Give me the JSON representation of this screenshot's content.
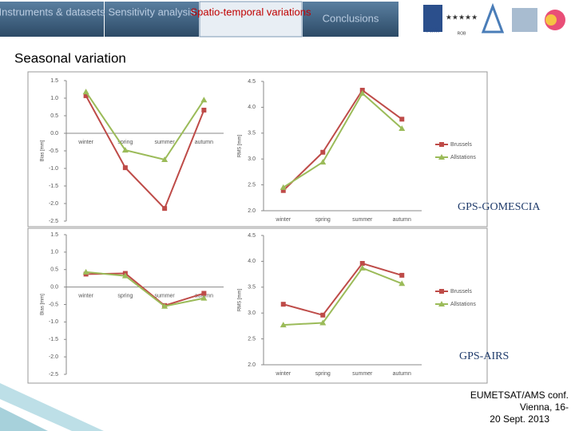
{
  "nav": [
    "Instruments & datasets",
    "Sensitivity analysis",
    "Spatio-temporal variations",
    "Conclusions"
  ],
  "logos": [
    "RMI",
    "ROB"
  ],
  "heading": "Seasonal variation",
  "panel_labels": [
    "GPS-GOMESCIA",
    "GPS-AIRS"
  ],
  "footer": [
    "EUMETSAT/AMS conf.",
    "Vienna, 16-",
    "20 Sept. 2013"
  ],
  "chart_data": [
    {
      "type": "line",
      "ylabel": "Bias [mm]",
      "categories": [
        "winter",
        "spring",
        "summer",
        "autumn"
      ],
      "series": [
        {
          "color": "#be4b48",
          "marker": "square",
          "values": [
            1.07,
            -0.98,
            -2.14,
            0.66
          ]
        },
        {
          "color": "#9bbb59",
          "marker": "triangle",
          "values": [
            1.18,
            -0.48,
            -0.75,
            0.95
          ]
        }
      ],
      "ylim": [
        -2.5,
        1.5
      ],
      "yticks": [
        1.5,
        {
          "value": 1,
          "label": "1.0"
        },
        0.5,
        {
          "value": 0,
          "label": "0.0"
        },
        -0.5,
        {
          "value": -1,
          "label": "-1.0"
        },
        -1.5,
        {
          "value": -2,
          "label": "-2.0"
        },
        -2.5
      ]
    },
    {
      "type": "line",
      "ylabel": "RMS [mm]",
      "categories": [
        "winter",
        "spring",
        "summer",
        "autumn"
      ],
      "legend": "right",
      "series": [
        {
          "name": "Brussels",
          "color": "#be4b48",
          "marker": "square",
          "values": [
            2.39,
            3.13,
            4.33,
            3.77
          ]
        },
        {
          "name": "Allstations",
          "color": "#9bbb59",
          "marker": "triangle",
          "values": [
            2.45,
            2.94,
            4.27,
            3.59
          ]
        }
      ],
      "ylim": [
        2,
        4.5
      ],
      "yticks": [
        4.5,
        {
          "value": 4,
          "label": "4.0"
        },
        3.5,
        {
          "value": 3,
          "label": "3.0"
        },
        2.5,
        {
          "value": 2,
          "label": "2.0"
        }
      ]
    },
    {
      "type": "line",
      "ylabel": "Bias [mm]",
      "categories": [
        "winter",
        "spring",
        "summer",
        "autumn"
      ],
      "series": [
        {
          "color": "#be4b48",
          "marker": "square",
          "values": [
            0.37,
            0.39,
            -0.53,
            -0.18
          ]
        },
        {
          "color": "#9bbb59",
          "marker": "triangle",
          "values": [
            0.43,
            0.32,
            -0.55,
            -0.32
          ]
        }
      ],
      "ylim": [
        -2.5,
        1.5
      ],
      "yticks": [
        1.5,
        {
          "value": 1,
          "label": "1.0"
        },
        0.5,
        {
          "value": 0,
          "label": "0.0"
        },
        -0.5,
        {
          "value": -1,
          "label": "-1.0"
        },
        -1.5,
        {
          "value": -2,
          "label": "-2.0"
        },
        -2.5
      ]
    },
    {
      "type": "line",
      "ylabel": "RMS [mm]",
      "categories": [
        "winter",
        "spring",
        "summer",
        "autumn"
      ],
      "legend": "right",
      "series": [
        {
          "name": "Brussels",
          "color": "#be4b48",
          "marker": "square",
          "values": [
            3.17,
            2.96,
            3.96,
            3.73
          ]
        },
        {
          "name": "Allstations",
          "color": "#9bbb59",
          "marker": "triangle",
          "values": [
            2.77,
            2.81,
            3.87,
            3.57
          ]
        }
      ],
      "ylim": [
        2,
        4.5
      ],
      "yticks": [
        4.5,
        {
          "value": 4,
          "label": "4.0"
        },
        3.5,
        {
          "value": 3,
          "label": "3.0"
        },
        2.5,
        {
          "value": 2,
          "label": "2.0"
        }
      ]
    }
  ]
}
